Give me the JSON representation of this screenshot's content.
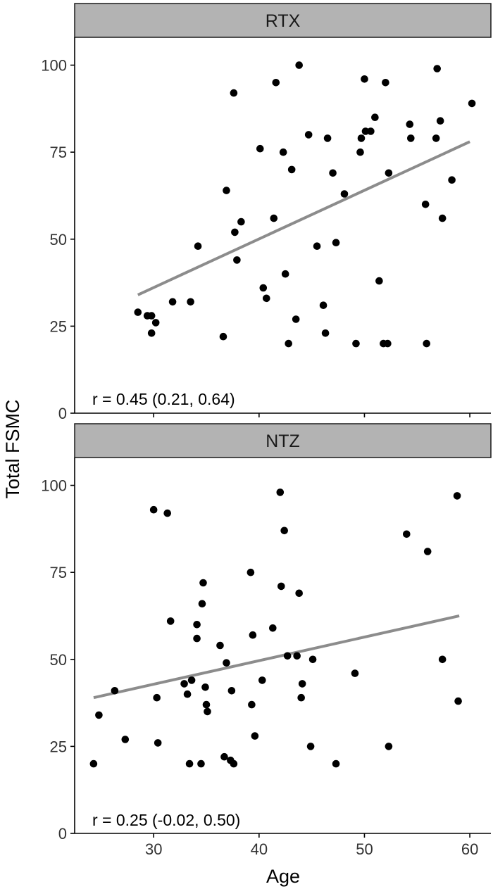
{
  "figure": {
    "xlabel": "Age",
    "ylabel": "Total FSMC"
  },
  "colors": {
    "points": "#000000",
    "fit_line": "#8c8c8c",
    "strip_fill": "#b3b3b3",
    "strip_border": "#1a1a1a",
    "axis": "#000000"
  },
  "chart_data": [
    {
      "type": "scatter",
      "panel": "RTX",
      "annotation": "r = 0.45 (0.21, 0.64)",
      "xlim": [
        22.5,
        62
      ],
      "ylim": [
        0,
        108
      ],
      "x_ticks": [
        30,
        40,
        50,
        60
      ],
      "y_ticks": [
        0,
        25,
        50,
        75,
        100
      ],
      "fit_line": {
        "x": [
          28.5,
          60
        ],
        "y": [
          34,
          78
        ]
      },
      "points": [
        {
          "x": 28.5,
          "y": 29
        },
        {
          "x": 29.4,
          "y": 28
        },
        {
          "x": 29.8,
          "y": 23
        },
        {
          "x": 30.2,
          "y": 26
        },
        {
          "x": 29.8,
          "y": 28
        },
        {
          "x": 31.8,
          "y": 32
        },
        {
          "x": 33.5,
          "y": 32
        },
        {
          "x": 34.2,
          "y": 48
        },
        {
          "x": 36.6,
          "y": 22
        },
        {
          "x": 36.9,
          "y": 64
        },
        {
          "x": 37.6,
          "y": 92
        },
        {
          "x": 37.7,
          "y": 52
        },
        {
          "x": 37.9,
          "y": 44
        },
        {
          "x": 38.3,
          "y": 55
        },
        {
          "x": 40.1,
          "y": 76
        },
        {
          "x": 40.4,
          "y": 36
        },
        {
          "x": 40.7,
          "y": 33
        },
        {
          "x": 41.4,
          "y": 56
        },
        {
          "x": 41.6,
          "y": 95
        },
        {
          "x": 42.3,
          "y": 75
        },
        {
          "x": 42.5,
          "y": 40
        },
        {
          "x": 42.8,
          "y": 20
        },
        {
          "x": 43.1,
          "y": 70
        },
        {
          "x": 43.5,
          "y": 27
        },
        {
          "x": 43.8,
          "y": 100
        },
        {
          "x": 44.7,
          "y": 80
        },
        {
          "x": 45.5,
          "y": 48
        },
        {
          "x": 46.1,
          "y": 31
        },
        {
          "x": 46.3,
          "y": 23
        },
        {
          "x": 46.5,
          "y": 79
        },
        {
          "x": 47.0,
          "y": 69
        },
        {
          "x": 47.3,
          "y": 49
        },
        {
          "x": 48.1,
          "y": 63
        },
        {
          "x": 49.2,
          "y": 20
        },
        {
          "x": 49.6,
          "y": 75
        },
        {
          "x": 49.7,
          "y": 79
        },
        {
          "x": 50.0,
          "y": 96
        },
        {
          "x": 50.1,
          "y": 81
        },
        {
          "x": 50.6,
          "y": 81
        },
        {
          "x": 51.0,
          "y": 85
        },
        {
          "x": 51.4,
          "y": 38
        },
        {
          "x": 51.8,
          "y": 20
        },
        {
          "x": 52.0,
          "y": 95
        },
        {
          "x": 52.2,
          "y": 20
        },
        {
          "x": 52.3,
          "y": 69
        },
        {
          "x": 54.3,
          "y": 83
        },
        {
          "x": 54.4,
          "y": 79
        },
        {
          "x": 55.8,
          "y": 60
        },
        {
          "x": 55.9,
          "y": 20
        },
        {
          "x": 56.8,
          "y": 79
        },
        {
          "x": 56.9,
          "y": 99
        },
        {
          "x": 57.2,
          "y": 84
        },
        {
          "x": 57.4,
          "y": 56
        },
        {
          "x": 58.3,
          "y": 67
        },
        {
          "x": 60.2,
          "y": 89
        }
      ]
    },
    {
      "type": "scatter",
      "panel": "NTZ",
      "annotation": "r = 0.25 (-0.02, 0.50)",
      "xlim": [
        22.5,
        62
      ],
      "ylim": [
        0,
        108
      ],
      "x_ticks": [
        30,
        40,
        50,
        60
      ],
      "y_ticks": [
        0,
        25,
        50,
        75,
        100
      ],
      "fit_line": {
        "x": [
          24.3,
          59
        ],
        "y": [
          39,
          62.5
        ]
      },
      "points": [
        {
          "x": 24.3,
          "y": 20
        },
        {
          "x": 24.8,
          "y": 34
        },
        {
          "x": 26.3,
          "y": 41
        },
        {
          "x": 27.3,
          "y": 27
        },
        {
          "x": 30.0,
          "y": 93
        },
        {
          "x": 30.3,
          "y": 39
        },
        {
          "x": 30.4,
          "y": 26
        },
        {
          "x": 31.3,
          "y": 92
        },
        {
          "x": 31.6,
          "y": 61
        },
        {
          "x": 32.9,
          "y": 43
        },
        {
          "x": 33.2,
          "y": 40
        },
        {
          "x": 33.4,
          "y": 20
        },
        {
          "x": 33.6,
          "y": 44
        },
        {
          "x": 34.1,
          "y": 60
        },
        {
          "x": 34.1,
          "y": 56
        },
        {
          "x": 34.5,
          "y": 20
        },
        {
          "x": 34.6,
          "y": 66
        },
        {
          "x": 34.7,
          "y": 72
        },
        {
          "x": 34.9,
          "y": 42
        },
        {
          "x": 35.0,
          "y": 37
        },
        {
          "x": 35.1,
          "y": 35
        },
        {
          "x": 36.3,
          "y": 54
        },
        {
          "x": 36.7,
          "y": 22
        },
        {
          "x": 36.9,
          "y": 49
        },
        {
          "x": 37.3,
          "y": 21
        },
        {
          "x": 37.4,
          "y": 41
        },
        {
          "x": 37.6,
          "y": 20
        },
        {
          "x": 39.2,
          "y": 75
        },
        {
          "x": 39.3,
          "y": 37
        },
        {
          "x": 39.4,
          "y": 57
        },
        {
          "x": 39.6,
          "y": 28
        },
        {
          "x": 40.3,
          "y": 44
        },
        {
          "x": 41.3,
          "y": 59
        },
        {
          "x": 42.0,
          "y": 98
        },
        {
          "x": 42.1,
          "y": 71
        },
        {
          "x": 42.4,
          "y": 87
        },
        {
          "x": 42.7,
          "y": 51
        },
        {
          "x": 43.6,
          "y": 51
        },
        {
          "x": 43.8,
          "y": 69
        },
        {
          "x": 44.0,
          "y": 39
        },
        {
          "x": 44.1,
          "y": 43
        },
        {
          "x": 44.9,
          "y": 25
        },
        {
          "x": 45.1,
          "y": 50
        },
        {
          "x": 47.3,
          "y": 20
        },
        {
          "x": 49.1,
          "y": 46
        },
        {
          "x": 52.3,
          "y": 25
        },
        {
          "x": 54.0,
          "y": 86
        },
        {
          "x": 56.0,
          "y": 81
        },
        {
          "x": 57.4,
          "y": 50
        },
        {
          "x": 58.8,
          "y": 97
        },
        {
          "x": 58.9,
          "y": 38
        }
      ]
    }
  ]
}
